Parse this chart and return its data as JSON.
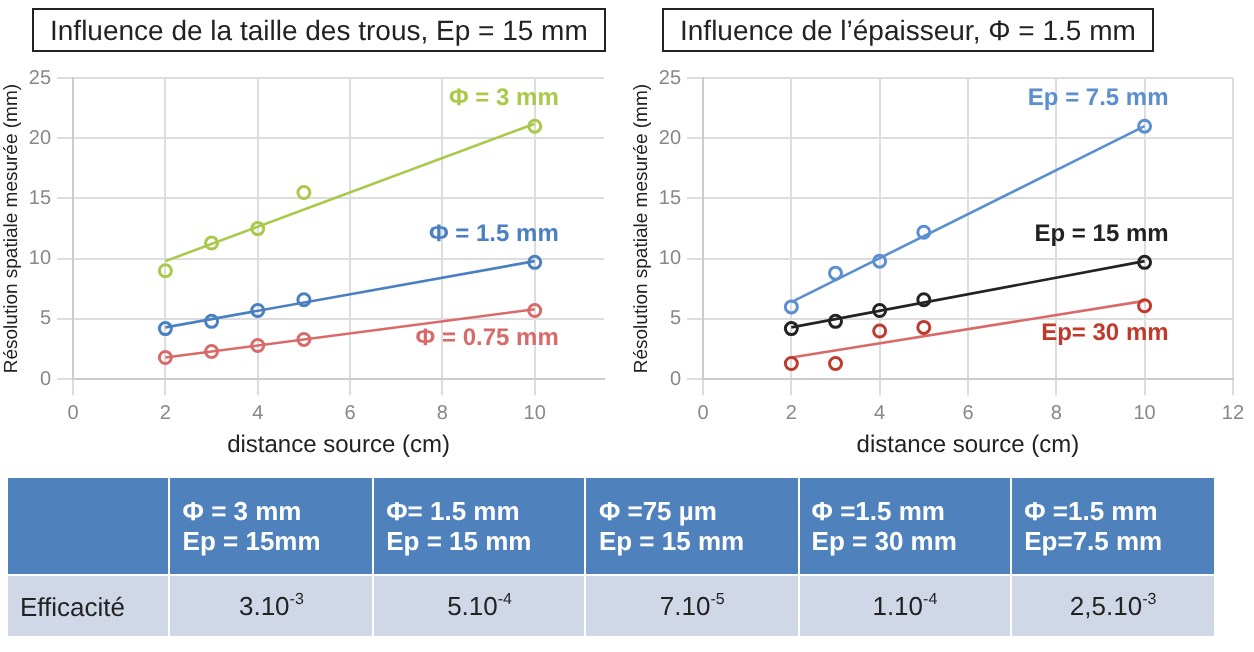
{
  "chart_data": [
    {
      "type": "scatter",
      "title": "Influence de la taille des trous, Ep = 15 mm",
      "xlabel": "distance source (cm)",
      "ylabel": "Résolution spatiale mesurée (mm)",
      "xlim": [
        0,
        11.5
      ],
      "xticks": [
        0,
        2,
        4,
        6,
        8,
        10
      ],
      "ylim": [
        0,
        25
      ],
      "yticks": [
        0,
        5,
        10,
        15,
        20,
        25
      ],
      "grid": true,
      "legend": false,
      "marker": "circle",
      "series": [
        {
          "name": "Φ = 3 mm",
          "color": "#a9c94a",
          "x": [
            2,
            3,
            4,
            5,
            10
          ],
          "values": [
            9,
            11.3,
            12.5,
            15.5,
            21
          ]
        },
        {
          "name": "Φ = 1.5 mm",
          "color": "#4a7fc1",
          "x": [
            2,
            3,
            4,
            5,
            10
          ],
          "values": [
            4.2,
            4.8,
            5.7,
            6.6,
            9.7
          ]
        },
        {
          "name": "Φ = 0.75 mm",
          "color": "#d86a6a",
          "x": [
            2,
            3,
            4,
            5,
            10
          ],
          "values": [
            1.8,
            2.3,
            2.8,
            3.3,
            5.7
          ]
        },
        {
          "type": "line",
          "marker": "none",
          "color": "#a9c94a",
          "x": [
            2,
            10
          ],
          "values": [
            9.8,
            21.2
          ]
        },
        {
          "type": "line",
          "marker": "none",
          "color": "#4a7fc1",
          "x": [
            2,
            10
          ],
          "values": [
            4.3,
            9.8
          ]
        },
        {
          "type": "line",
          "marker": "none",
          "color": "#d86a6a",
          "x": [
            2,
            10
          ],
          "values": [
            1.8,
            5.8
          ]
        }
      ]
    },
    {
      "type": "scatter",
      "title": "Influence de l’épaisseur, Φ = 1.5 mm",
      "xlabel": "distance source (cm)",
      "ylabel": "Résolution spatiale mesurée (mm)",
      "xlim": [
        0,
        12
      ],
      "xticks": [
        0,
        2,
        4,
        6,
        8,
        10,
        12
      ],
      "ylim": [
        0,
        25
      ],
      "yticks": [
        0,
        5,
        10,
        15,
        20,
        25
      ],
      "grid": true,
      "legend": false,
      "marker": "circle",
      "series": [
        {
          "name": "Ep = 7.5 mm",
          "color": "#5b8fd0",
          "x": [
            2,
            3,
            4,
            5,
            10
          ],
          "values": [
            6,
            8.8,
            9.8,
            12.2,
            21
          ]
        },
        {
          "name": "Ep = 15 mm",
          "color": "#222222",
          "x": [
            2,
            3,
            4,
            5,
            10
          ],
          "values": [
            4.2,
            4.8,
            5.7,
            6.6,
            9.7
          ]
        },
        {
          "name": "Ep= 30 mm",
          "color": "#c0392b",
          "x": [
            2,
            3,
            4,
            5,
            10
          ],
          "values": [
            1.3,
            1.3,
            4,
            4.3,
            6.1
          ]
        },
        {
          "type": "line",
          "marker": "none",
          "color": "#5b8fd0",
          "x": [
            2,
            10
          ],
          "values": [
            6.4,
            21
          ]
        },
        {
          "type": "line",
          "marker": "none",
          "color": "#222222",
          "x": [
            2,
            10
          ],
          "values": [
            4.3,
            9.8
          ]
        },
        {
          "type": "line",
          "marker": "none",
          "color": "#d86a6a",
          "x": [
            2,
            10
          ],
          "values": [
            1.8,
            6.5
          ]
        }
      ]
    },
    {
      "type": "other",
      "categories": [
        null,
        "Φ = 3 mm\nEp = 15mm",
        "Φ= 1.5 mm\nEp = 15 mm",
        "Φ =75 µm\nEp = 15 mm",
        "Φ =1.5 mm\nEp = 30 mm",
        "Φ =1.5 mm\nEp=7.5 mm"
      ],
      "y_categories": [
        "Efficacité"
      ],
      "cell_labels": [
        [
          "3.10$^{-3}$",
          "5.10$^{-4}$",
          "7.10$^{-5}$",
          "1.10$^{-4}$",
          "2,5.10$^{-3}$"
        ]
      ]
    }
  ]
}
